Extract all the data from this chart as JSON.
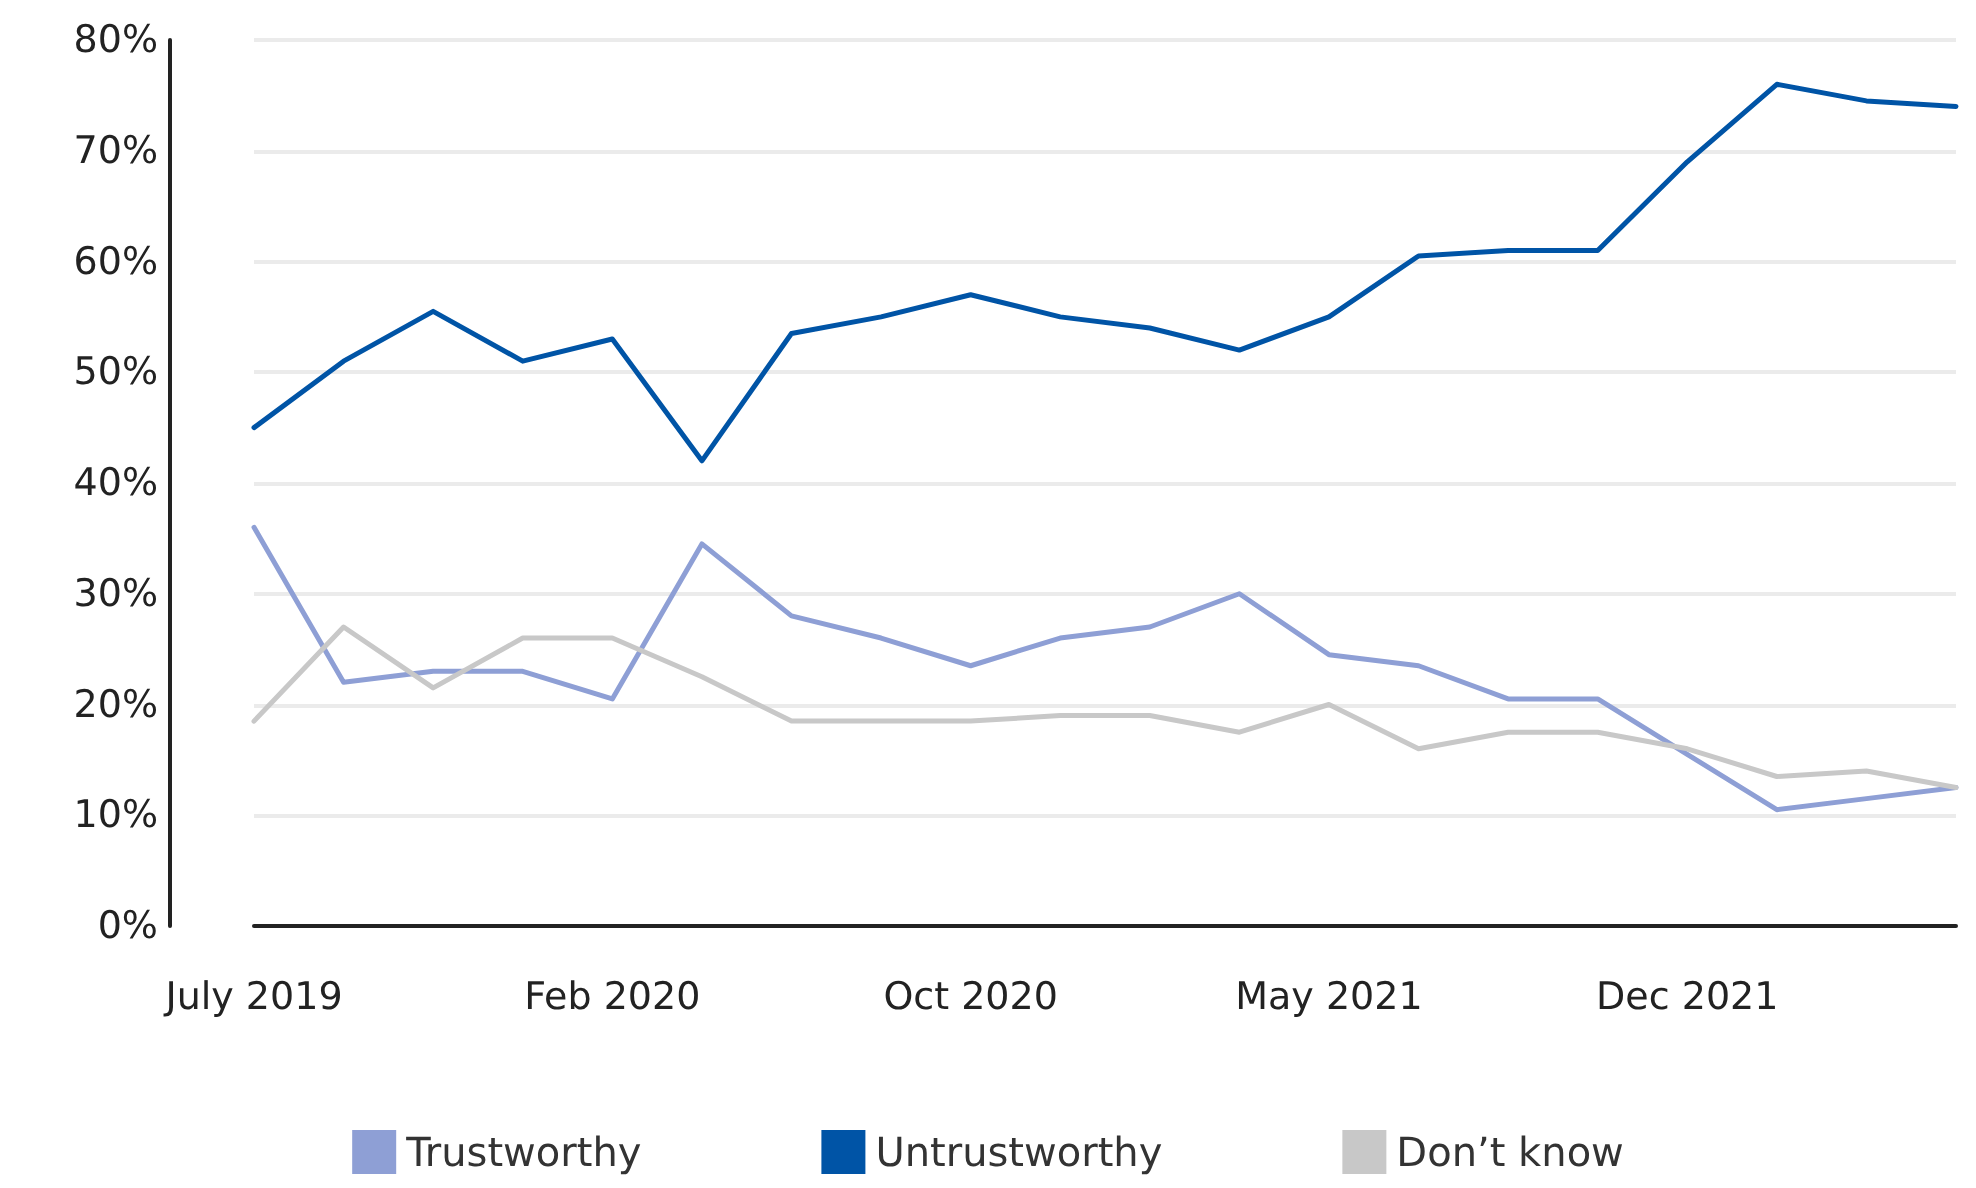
{
  "chart_data": {
    "type": "line",
    "categories": [
      "July 2019",
      null,
      null,
      null,
      "Feb 2020",
      null,
      null,
      null,
      "Oct 2020",
      null,
      null,
      null,
      "May 2021",
      null,
      null,
      null,
      "Dec 2021",
      null,
      null,
      null
    ],
    "series": [
      {
        "name": "Trustworthy",
        "color": "#8e9fd5",
        "values": [
          36,
          22,
          23,
          23,
          20.5,
          34.5,
          28,
          26,
          23.5,
          26,
          27,
          30,
          24.5,
          23.5,
          20.5,
          20.5,
          15.5,
          10.5,
          11.5,
          12.5
        ]
      },
      {
        "name": "Untrustworthy",
        "color": "#0054a6",
        "values": [
          45,
          51,
          55.5,
          51,
          53,
          42,
          53.5,
          55,
          57,
          55,
          54,
          52,
          55,
          60.5,
          61,
          61,
          69,
          76,
          74.5,
          74
        ]
      },
      {
        "name": "Don’t know",
        "color": "#c8c8c8",
        "values": [
          18.5,
          27,
          21.5,
          26,
          26,
          22.5,
          18.5,
          18.5,
          18.5,
          19,
          19,
          17.5,
          20,
          16,
          17.5,
          17.5,
          16,
          13.5,
          14,
          12.5
        ]
      }
    ],
    "ylim": [
      0,
      80
    ],
    "yticks": [
      {
        "value": 0,
        "label": "0%"
      },
      {
        "value": 10,
        "label": "10%"
      },
      {
        "value": 20,
        "label": "20%"
      },
      {
        "value": 30,
        "label": "30%"
      },
      {
        "value": 40,
        "label": "40%"
      },
      {
        "value": 50,
        "label": "50%"
      },
      {
        "value": 60,
        "label": "60%"
      },
      {
        "value": 70,
        "label": "70%"
      },
      {
        "value": 80,
        "label": "80%"
      }
    ],
    "grid": "y",
    "legend": "bottom",
    "marker": "none",
    "line_style": "solid"
  }
}
